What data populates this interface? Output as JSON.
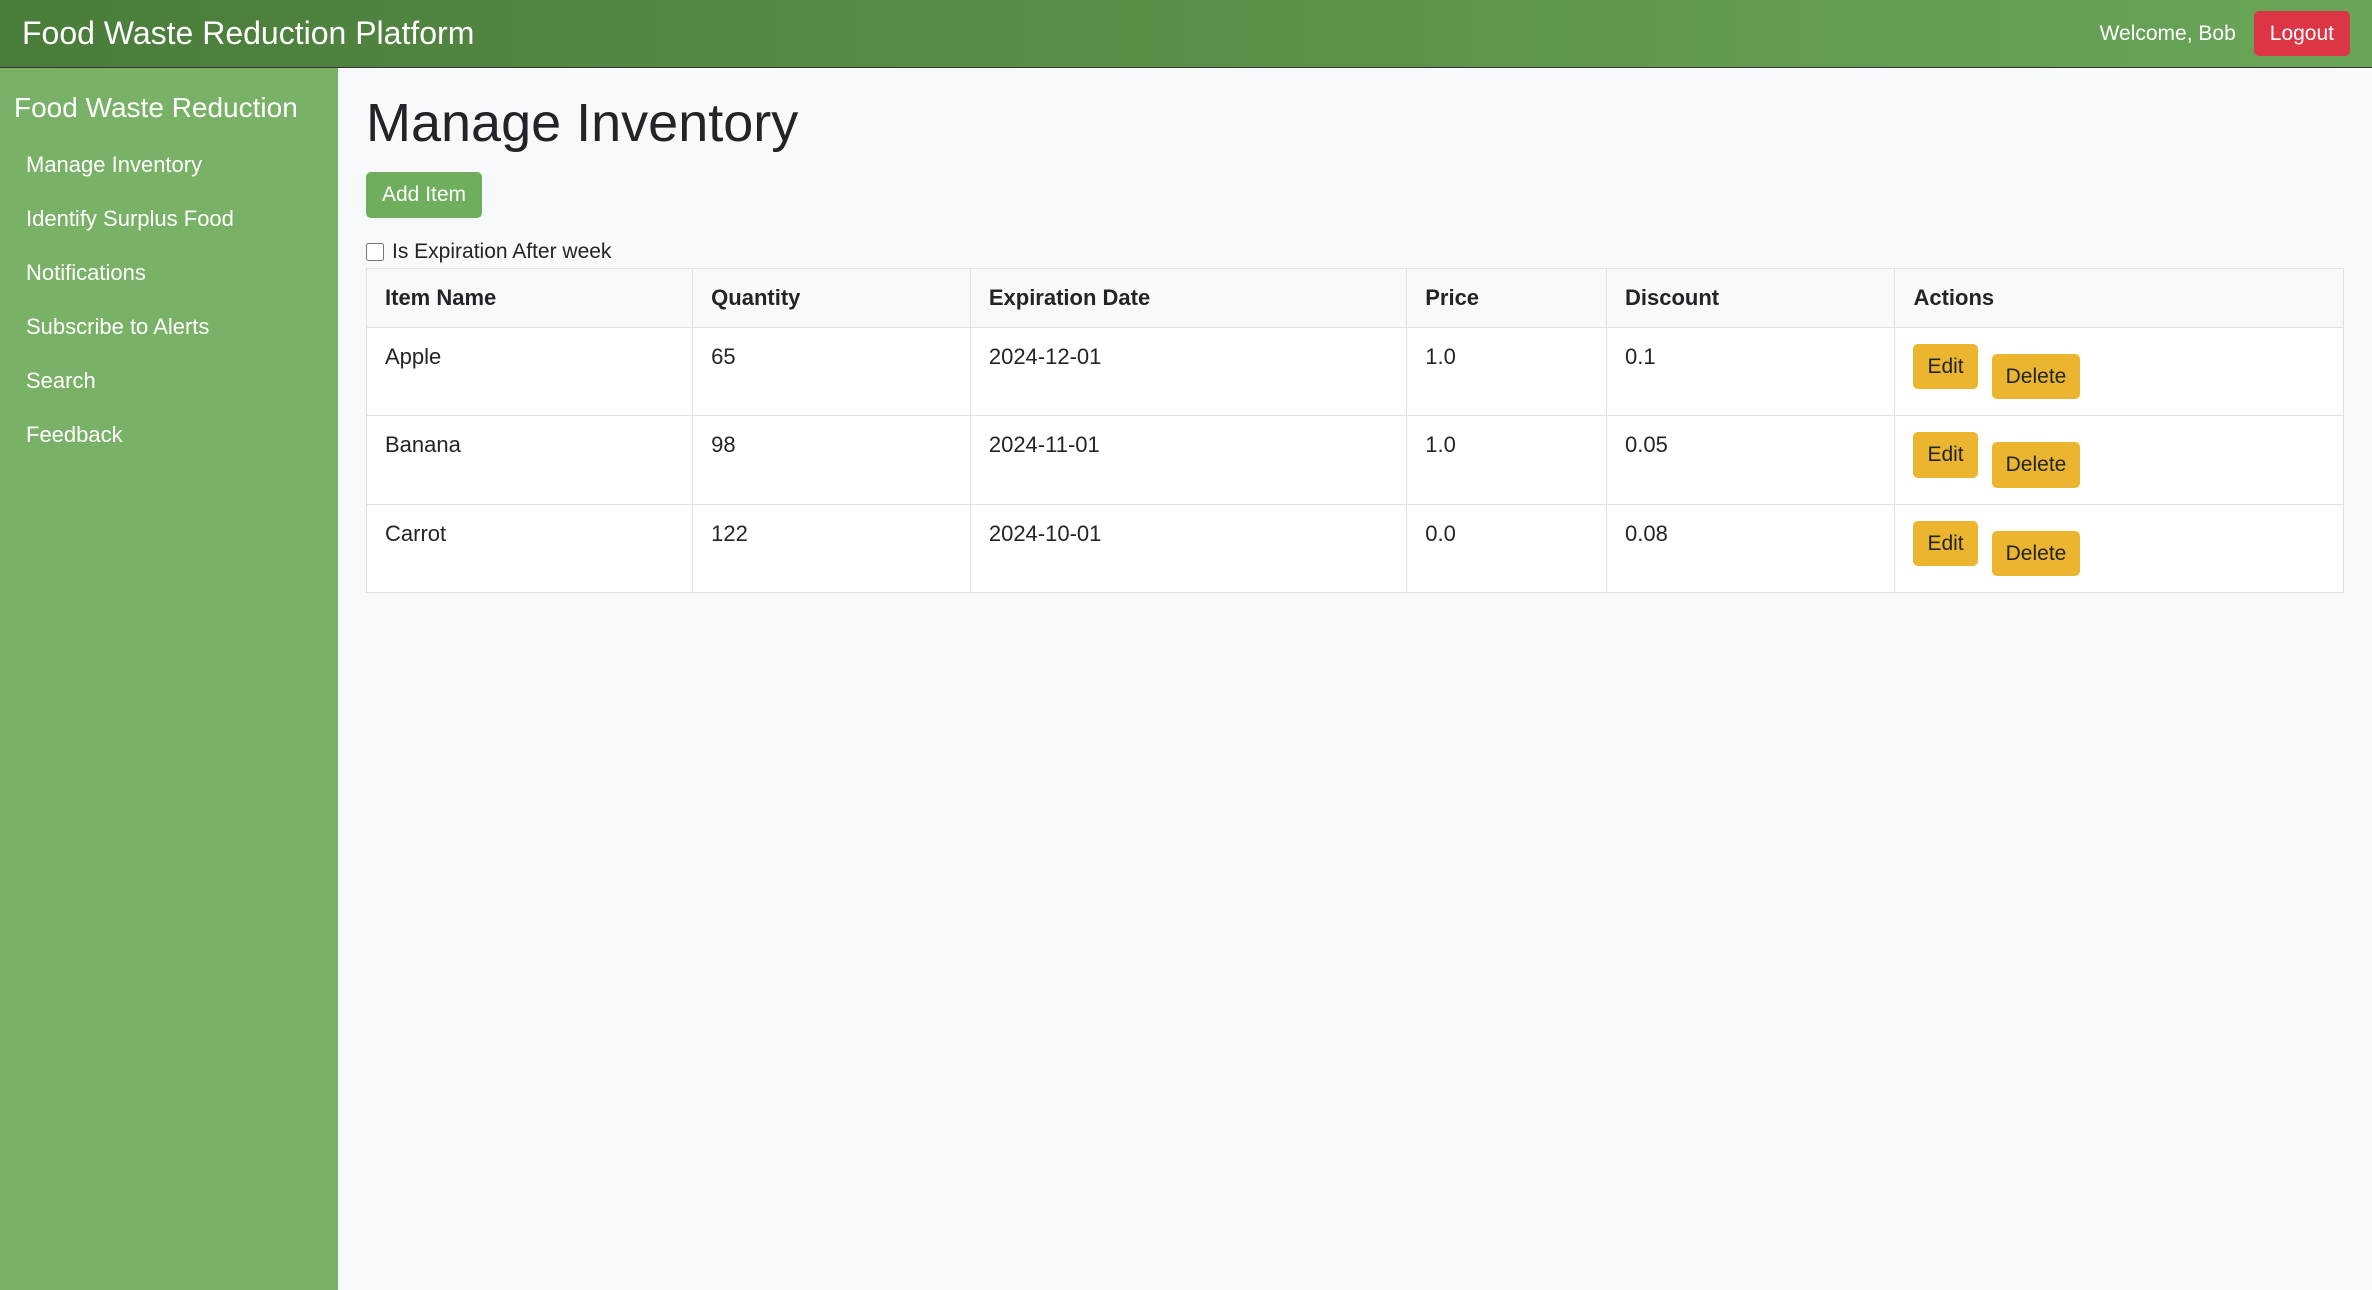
{
  "colors": {
    "topbar_gradient_start": "#4a7c3a",
    "topbar_gradient_end": "#69a558",
    "sidebar_bg": "#79b267",
    "btn_success_bg": "#6fae5d",
    "btn_danger_bg": "#dc3545",
    "btn_warning_bg": "#ecb52f",
    "page_bg": "#f8f9fa",
    "border": "#dee2e6",
    "text": "#212529",
    "white": "#ffffff"
  },
  "topbar": {
    "brand": "Food Waste Reduction Platform",
    "welcome": "Welcome, Bob",
    "logout": "Logout"
  },
  "sidebar": {
    "title": "Food Waste Reduction",
    "items": [
      {
        "label": "Manage Inventory"
      },
      {
        "label": "Identify Surplus Food"
      },
      {
        "label": "Notifications"
      },
      {
        "label": "Subscribe to Alerts"
      },
      {
        "label": "Search"
      },
      {
        "label": "Feedback"
      }
    ]
  },
  "main": {
    "title": "Manage Inventory",
    "add_item": "Add Item",
    "filter_label": "Is Expiration After week",
    "filter_checked": false
  },
  "table": {
    "columns": [
      "Item Name",
      "Quantity",
      "Expiration Date",
      "Price",
      "Discount",
      "Actions"
    ],
    "rows": [
      {
        "name": "Apple",
        "quantity": "65",
        "expiration": "2024-12-01",
        "price": "1.0",
        "discount": "0.1"
      },
      {
        "name": "Banana",
        "quantity": "98",
        "expiration": "2024-11-01",
        "price": "1.0",
        "discount": "0.05"
      },
      {
        "name": "Carrot",
        "quantity": "122",
        "expiration": "2024-10-01",
        "price": "0.0",
        "discount": "0.08"
      }
    ],
    "actions": {
      "edit": "Edit",
      "delete": "Delete"
    }
  }
}
